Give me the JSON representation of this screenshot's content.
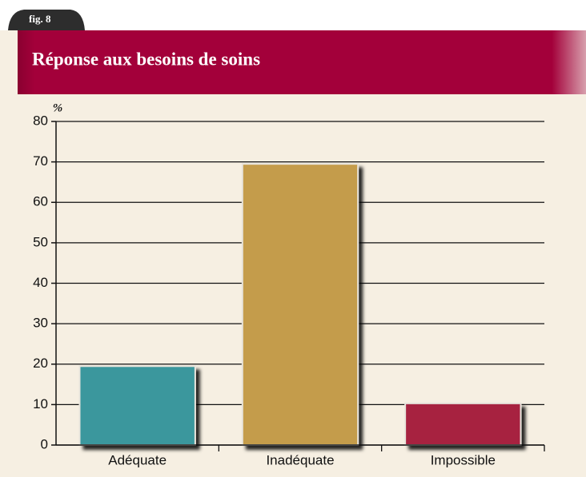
{
  "chart_data": {
    "type": "bar",
    "fig_label": "fig. 8",
    "title": "Réponse aux besoins de soins",
    "ylabel": "%",
    "categories": [
      "Adéquate",
      "Inadéquate",
      "Impossible"
    ],
    "values": [
      19.5,
      69.5,
      10.3
    ],
    "colors": [
      "#3a979d",
      "#c49c4c",
      "#a7213f"
    ],
    "ylim": [
      0,
      80
    ],
    "yticks": [
      0,
      10,
      20,
      30,
      40,
      50,
      60,
      70,
      80
    ],
    "grid": true
  }
}
